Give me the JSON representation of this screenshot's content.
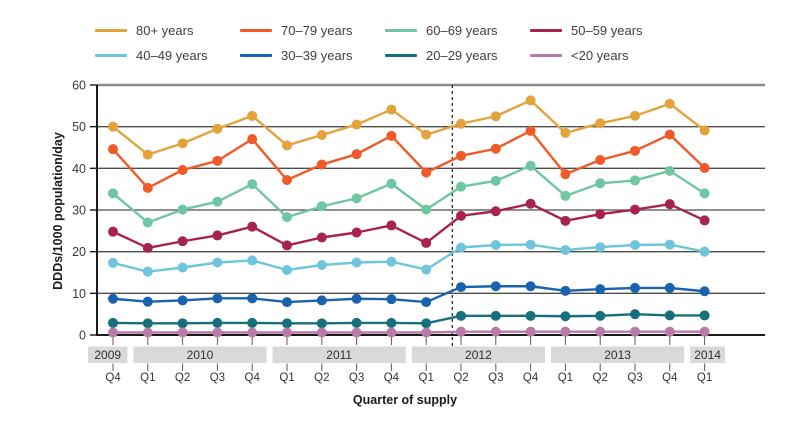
{
  "chart_data": {
    "type": "line",
    "title": "",
    "xlabel": "Quarter of supply",
    "ylabel": "DDDs/1000 population/day",
    "ylim": [
      0,
      60
    ],
    "yticks": [
      0,
      10,
      20,
      30,
      40,
      50,
      60
    ],
    "grid": "horizontal",
    "legend_position": "top",
    "quarters": [
      "Q4",
      "Q1",
      "Q2",
      "Q3",
      "Q4",
      "Q1",
      "Q2",
      "Q3",
      "Q4",
      "Q1",
      "Q2",
      "Q3",
      "Q4",
      "Q1",
      "Q2",
      "Q3",
      "Q4",
      "Q1"
    ],
    "year_bands": [
      {
        "label": "2009",
        "from": 0,
        "to": 0
      },
      {
        "label": "2010",
        "from": 1,
        "to": 4
      },
      {
        "label": "2011",
        "from": 5,
        "to": 8
      },
      {
        "label": "2012",
        "from": 9,
        "to": 12
      },
      {
        "label": "2013",
        "from": 13,
        "to": 16
      },
      {
        "label": "2014",
        "from": 17,
        "to": 17
      }
    ],
    "dashed_line": {
      "between": [
        "2012 Q1",
        "2012 Q2"
      ],
      "x_index": 9.75
    },
    "band_fill": "#d9d9d9",
    "gridline_color": "#4d4d4d",
    "series": [
      {
        "name": "80+ years",
        "color": "#E3A23C",
        "values": [
          50.0,
          43.3,
          46.0,
          49.5,
          52.6,
          45.5,
          48.0,
          50.5,
          54.1,
          48.1,
          50.7,
          52.5,
          56.3,
          48.5,
          50.8,
          52.6,
          55.5,
          49.1
        ]
      },
      {
        "name": "70–79 years",
        "color": "#EF5A28",
        "values": [
          44.6,
          35.3,
          39.6,
          41.8,
          47.0,
          37.2,
          40.9,
          43.4,
          47.8,
          39.0,
          43.0,
          44.7,
          49.0,
          38.6,
          42.0,
          44.2,
          48.1,
          40.1
        ]
      },
      {
        "name": "60–69 years",
        "color": "#6EC6A3",
        "values": [
          34.0,
          27.0,
          30.1,
          32.0,
          36.2,
          28.3,
          30.9,
          32.8,
          36.3,
          30.1,
          35.6,
          37.0,
          40.6,
          33.4,
          36.4,
          37.1,
          39.4,
          34.0
        ]
      },
      {
        "name": "50–59 years",
        "color": "#A6234B",
        "values": [
          24.8,
          20.9,
          22.5,
          23.9,
          26.0,
          21.5,
          23.4,
          24.6,
          26.3,
          22.1,
          28.6,
          29.7,
          31.5,
          27.4,
          29.0,
          30.1,
          31.4,
          27.5
        ]
      },
      {
        "name": "40–49 years",
        "color": "#6FC5DB",
        "values": [
          17.3,
          15.2,
          16.2,
          17.4,
          17.9,
          15.6,
          16.8,
          17.4,
          17.6,
          15.7,
          21.0,
          21.6,
          21.7,
          20.4,
          21.1,
          21.6,
          21.7,
          20.0
        ]
      },
      {
        "name": "30–39 years",
        "color": "#1A62AD",
        "values": [
          8.7,
          8.0,
          8.3,
          8.8,
          8.8,
          7.9,
          8.3,
          8.7,
          8.6,
          7.9,
          11.5,
          11.7,
          11.7,
          10.6,
          11.0,
          11.3,
          11.3,
          10.5
        ]
      },
      {
        "name": "20–29 years",
        "color": "#16707B",
        "values": [
          2.9,
          2.8,
          2.8,
          2.9,
          2.9,
          2.8,
          2.8,
          2.9,
          2.9,
          2.8,
          4.6,
          4.6,
          4.6,
          4.5,
          4.6,
          5.0,
          4.7,
          4.7
        ]
      },
      {
        "name": "<20 years",
        "color": "#B97AA8",
        "values": [
          0.6,
          0.6,
          0.6,
          0.6,
          0.6,
          0.6,
          0.6,
          0.6,
          0.6,
          0.6,
          0.8,
          0.8,
          0.8,
          0.8,
          0.8,
          0.8,
          0.8,
          0.8
        ]
      }
    ]
  }
}
